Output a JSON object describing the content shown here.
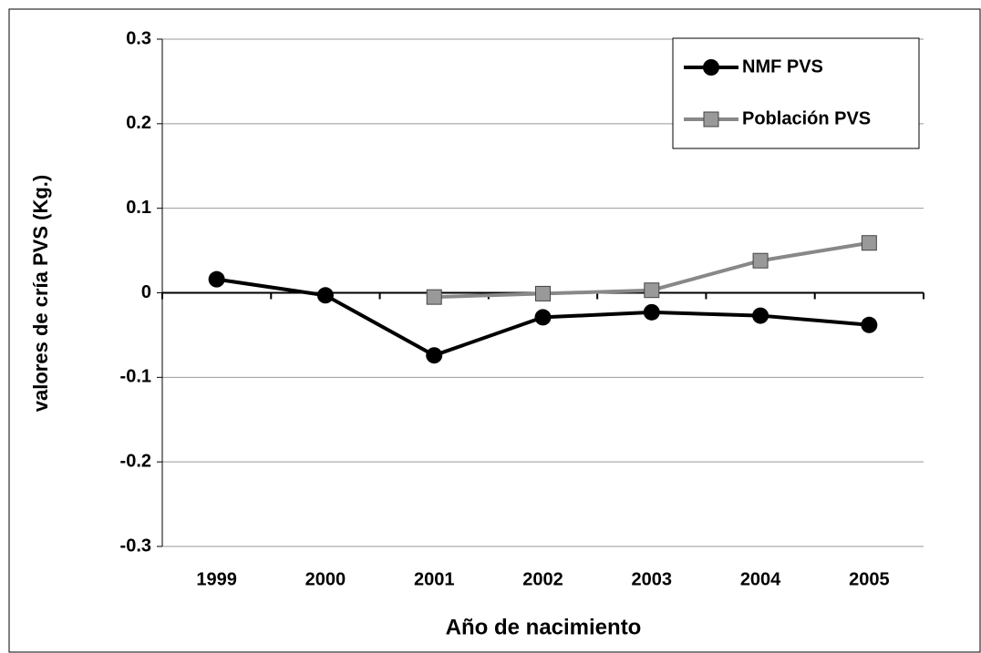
{
  "chart_data": {
    "type": "line",
    "categories": [
      "1999",
      "2000",
      "2001",
      "2002",
      "2003",
      "2004",
      "2005"
    ],
    "series": [
      {
        "name": "NMF PVS",
        "color": "#000000",
        "marker": "circle",
        "values": [
          0.016,
          -0.003,
          -0.074,
          -0.029,
          -0.023,
          -0.027,
          -0.038
        ]
      },
      {
        "name": "Población PVS",
        "color": "#888888",
        "marker": "square",
        "values": [
          null,
          null,
          -0.005,
          -0.001,
          0.003,
          0.038,
          0.059
        ]
      }
    ],
    "ylim": [
      -0.3,
      0.3
    ],
    "yticks": [
      -0.3,
      -0.2,
      -0.1,
      0,
      0.1,
      0.2,
      0.3
    ],
    "xlabel": "Año de nacimiento",
    "ylabel": "valores de cría PVS (Kg.)",
    "grid": true,
    "legend": "top-right"
  }
}
